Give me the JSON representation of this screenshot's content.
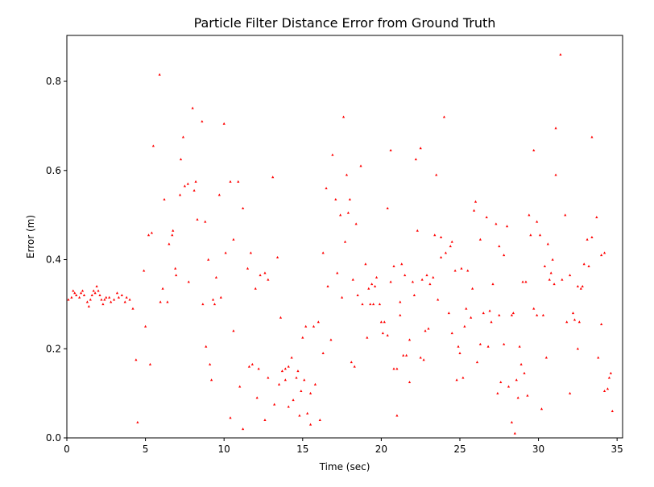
{
  "chart_data": {
    "type": "scatter",
    "title": "Particle Filter Distance Error from Ground Truth",
    "xlabel": "Time (sec)",
    "ylabel": "Error (m)",
    "color": "#ff0000",
    "xlim": [
      0,
      35.35
    ],
    "ylim": [
      0,
      0.903
    ],
    "xticks": [
      0,
      5,
      10,
      15,
      20,
      25,
      30,
      35
    ],
    "yticks": [
      {
        "value": 0,
        "label": "0.0"
      },
      0.2,
      0.4,
      0.6,
      0.8
    ],
    "x": [
      0.1,
      0.3,
      0.4,
      0.5,
      0.6,
      0.8,
      0.9,
      1.0,
      1.1,
      1.3,
      1.4,
      1.5,
      1.6,
      1.7,
      1.8,
      1.9,
      2.0,
      2.1,
      2.2,
      2.3,
      2.4,
      2.5,
      2.7,
      2.8,
      3.0,
      3.2,
      3.3,
      3.5,
      3.7,
      3.8,
      4.0,
      4.2,
      4.4,
      4.5,
      4.9,
      5.0,
      5.2,
      5.3,
      5.4,
      5.5,
      5.9,
      5.95,
      6.1,
      6.2,
      6.4,
      6.5,
      6.7,
      6.75,
      6.9,
      6.95,
      7.2,
      7.25,
      7.4,
      7.5,
      7.7,
      7.75,
      8.0,
      8.1,
      8.2,
      8.3,
      8.6,
      8.65,
      8.8,
      8.85,
      9.0,
      9.1,
      9.2,
      9.3,
      9.4,
      9.5,
      9.7,
      9.8,
      10.0,
      10.1,
      10.4,
      10.4,
      10.6,
      10.6,
      10.9,
      11.0,
      11.2,
      11.2,
      11.5,
      11.6,
      11.7,
      11.8,
      12.0,
      12.1,
      12.2,
      12.3,
      12.6,
      12.6,
      12.8,
      12.8,
      13.1,
      13.2,
      13.4,
      13.5,
      13.6,
      13.7,
      13.9,
      13.9,
      14.1,
      14.1,
      14.3,
      14.4,
      14.6,
      14.7,
      14.8,
      14.9,
      15.0,
      15.1,
      15.2,
      15.3,
      15.5,
      15.5,
      15.7,
      15.8,
      16.0,
      16.1,
      16.3,
      16.3,
      16.5,
      16.6,
      16.8,
      16.9,
      17.1,
      17.2,
      17.4,
      17.5,
      17.6,
      17.7,
      17.8,
      17.9,
      18.0,
      18.1,
      18.2,
      18.3,
      18.4,
      18.5,
      18.7,
      18.8,
      19.0,
      19.1,
      19.2,
      19.3,
      19.4,
      19.5,
      19.6,
      19.7,
      19.9,
      20.0,
      20.1,
      20.2,
      20.4,
      20.4,
      20.6,
      20.6,
      20.8,
      20.8,
      21.0,
      21.0,
      21.2,
      21.2,
      21.3,
      21.4,
      21.5,
      21.6,
      21.8,
      21.8,
      22.0,
      22.1,
      22.2,
      22.3,
      22.5,
      22.5,
      22.6,
      22.7,
      22.8,
      22.9,
      23.0,
      23.1,
      23.3,
      23.4,
      23.5,
      23.6,
      23.8,
      23.8,
      24.0,
      24.1,
      24.3,
      24.4,
      24.5,
      24.5,
      24.7,
      24.8,
      24.9,
      25.0,
      25.1,
      25.2,
      25.3,
      25.4,
      25.5,
      25.7,
      25.8,
      25.9,
      26.0,
      26.1,
      26.3,
      26.3,
      26.5,
      26.7,
      26.8,
      26.9,
      27.0,
      27.1,
      27.3,
      27.4,
      27.5,
      27.5,
      27.6,
      27.8,
      27.8,
      28.0,
      28.1,
      28.3,
      28.3,
      28.4,
      28.5,
      28.6,
      28.7,
      28.8,
      28.9,
      29.0,
      29.1,
      29.2,
      29.3,
      29.4,
      29.5,
      29.7,
      29.7,
      29.9,
      29.9,
      30.1,
      30.2,
      30.3,
      30.4,
      30.5,
      30.6,
      30.7,
      30.8,
      30.9,
      31.0,
      31.1,
      31.1,
      31.4,
      31.5,
      31.7,
      31.8,
      32.0,
      32.0,
      32.2,
      32.3,
      32.5,
      32.5,
      32.6,
      32.7,
      32.8,
      32.9,
      33.1,
      33.2,
      33.4,
      33.4,
      33.7,
      33.8,
      34.0,
      34.0,
      34.2,
      34.2,
      34.4,
      34.5,
      34.6,
      34.7
    ],
    "y": [
      0.31,
      0.315,
      0.33,
      0.325,
      0.32,
      0.315,
      0.325,
      0.33,
      0.32,
      0.305,
      0.295,
      0.31,
      0.32,
      0.33,
      0.325,
      0.34,
      0.33,
      0.32,
      0.31,
      0.3,
      0.31,
      0.315,
      0.315,
      0.305,
      0.31,
      0.325,
      0.315,
      0.32,
      0.305,
      0.315,
      0.31,
      0.29,
      0.175,
      0.035,
      0.375,
      0.25,
      0.455,
      0.165,
      0.46,
      0.655,
      0.815,
      0.305,
      0.335,
      0.535,
      0.305,
      0.435,
      0.455,
      0.465,
      0.38,
      0.365,
      0.545,
      0.625,
      0.675,
      0.565,
      0.57,
      0.35,
      0.74,
      0.555,
      0.575,
      0.49,
      0.71,
      0.3,
      0.485,
      0.205,
      0.4,
      0.165,
      0.13,
      0.31,
      0.3,
      0.36,
      0.545,
      0.315,
      0.705,
      0.415,
      0.575,
      0.045,
      0.445,
      0.24,
      0.575,
      0.115,
      0.515,
      0.02,
      0.38,
      0.16,
      0.415,
      0.165,
      0.335,
      0.09,
      0.155,
      0.365,
      0.04,
      0.37,
      0.355,
      0.135,
      0.585,
      0.075,
      0.405,
      0.12,
      0.27,
      0.15,
      0.13,
      0.155,
      0.07,
      0.16,
      0.18,
      0.085,
      0.135,
      0.15,
      0.05,
      0.105,
      0.225,
      0.13,
      0.25,
      0.055,
      0.1,
      0.03,
      0.25,
      0.12,
      0.26,
      0.04,
      0.415,
      0.19,
      0.56,
      0.34,
      0.22,
      0.635,
      0.535,
      0.37,
      0.5,
      0.315,
      0.72,
      0.44,
      0.59,
      0.505,
      0.535,
      0.17,
      0.355,
      0.16,
      0.48,
      0.32,
      0.61,
      0.3,
      0.39,
      0.225,
      0.335,
      0.3,
      0.345,
      0.3,
      0.34,
      0.36,
      0.3,
      0.26,
      0.235,
      0.26,
      0.515,
      0.23,
      0.645,
      0.35,
      0.385,
      0.155,
      0.155,
      0.05,
      0.275,
      0.305,
      0.39,
      0.185,
      0.365,
      0.185,
      0.22,
      0.125,
      0.35,
      0.32,
      0.625,
      0.465,
      0.18,
      0.65,
      0.355,
      0.175,
      0.24,
      0.365,
      0.245,
      0.345,
      0.36,
      0.455,
      0.59,
      0.31,
      0.45,
      0.405,
      0.72,
      0.415,
      0.28,
      0.43,
      0.44,
      0.235,
      0.375,
      0.13,
      0.205,
      0.19,
      0.38,
      0.135,
      0.25,
      0.29,
      0.375,
      0.27,
      0.335,
      0.51,
      0.53,
      0.17,
      0.445,
      0.21,
      0.28,
      0.495,
      0.205,
      0.285,
      0.26,
      0.345,
      0.48,
      0.1,
      0.43,
      0.275,
      0.125,
      0.41,
      0.21,
      0.475,
      0.115,
      0.275,
      0.035,
      0.28,
      0.01,
      0.13,
      0.09,
      0.205,
      0.165,
      0.35,
      0.145,
      0.35,
      0.095,
      0.5,
      0.455,
      0.645,
      0.29,
      0.485,
      0.275,
      0.455,
      0.065,
      0.275,
      0.385,
      0.18,
      0.435,
      0.355,
      0.37,
      0.4,
      0.345,
      0.59,
      0.695,
      0.86,
      0.355,
      0.5,
      0.26,
      0.365,
      0.1,
      0.28,
      0.265,
      0.34,
      0.2,
      0.26,
      0.335,
      0.34,
      0.39,
      0.445,
      0.385,
      0.675,
      0.45,
      0.495,
      0.18,
      0.41,
      0.255,
      0.415,
      0.105,
      0.11,
      0.135,
      0.145,
      0.06
    ]
  }
}
